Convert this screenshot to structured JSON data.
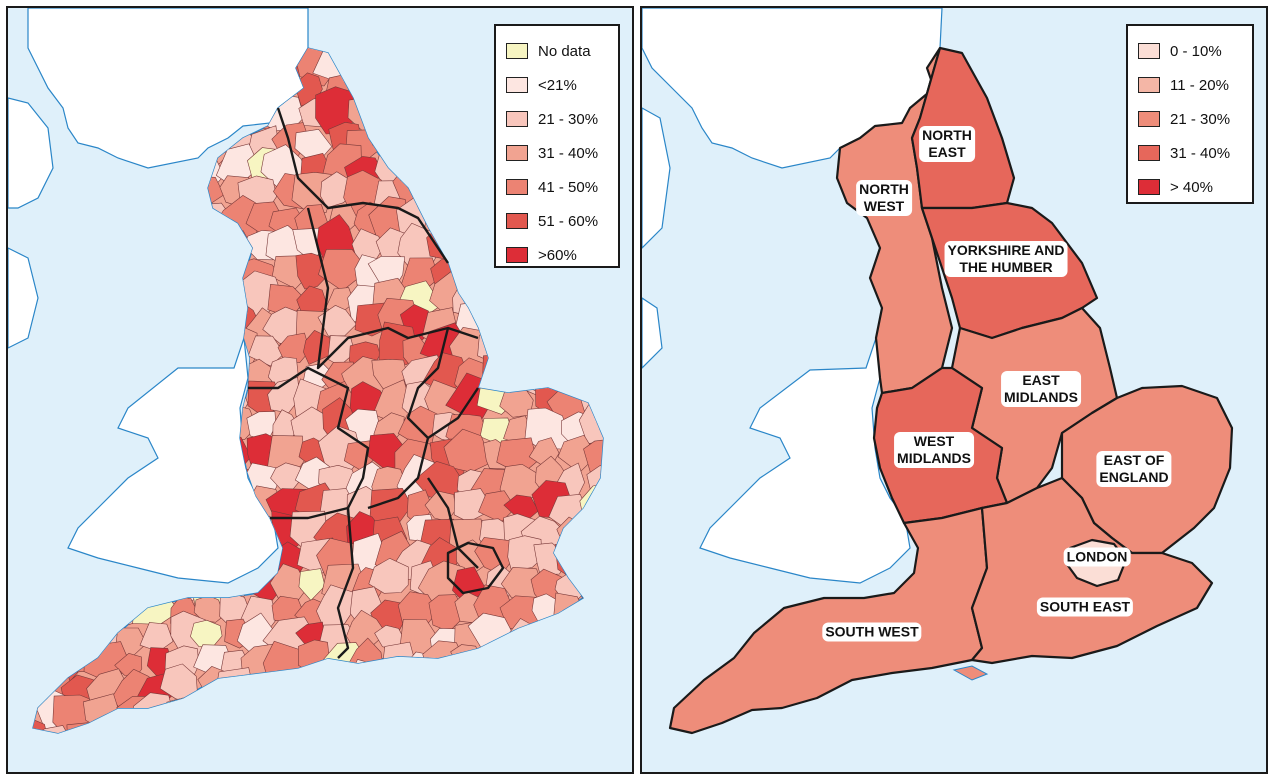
{
  "colors": {
    "sea": "#dff0fa",
    "land_other": "#ffffff",
    "coast": "#2a86c8",
    "border": "#1a1a1a"
  },
  "left_map": {
    "legend": [
      {
        "label": "No data",
        "color": "#f7f5c2"
      },
      {
        "label": "<21%",
        "color": "#fde6e1"
      },
      {
        "label": "21 - 30%",
        "color": "#f8c6bc"
      },
      {
        "label": "31 - 40%",
        "color": "#f1a391"
      },
      {
        "label": "41 - 50%",
        "color": "#ec8373"
      },
      {
        "label": "51 - 60%",
        "color": "#e2584f"
      },
      {
        "label": ">60%",
        "color": "#dd2d37"
      }
    ]
  },
  "right_map": {
    "legend": [
      {
        "label": "0 - 10%",
        "color": "#fbded6"
      },
      {
        "label": "11 - 20%",
        "color": "#f4b6a6"
      },
      {
        "label": "21 - 30%",
        "color": "#ee8d7a"
      },
      {
        "label": "31 - 40%",
        "color": "#e6675b"
      },
      {
        "label": "> 40%",
        "color": "#dd2d37"
      }
    ],
    "regions": [
      {
        "name": "NORTH\nEAST",
        "band": "31 - 40%",
        "color": "#e6675b"
      },
      {
        "name": "NORTH\nWEST",
        "band": "21 - 30%",
        "color": "#ee8d7a"
      },
      {
        "name": "YORKSHIRE AND\nTHE HUMBER",
        "band": "31 - 40%",
        "color": "#e6675b"
      },
      {
        "name": "EAST\nMIDLANDS",
        "band": "21 - 30%",
        "color": "#ee8d7a"
      },
      {
        "name": "WEST\nMIDLANDS",
        "band": "31 - 40%",
        "color": "#e6675b"
      },
      {
        "name": "EAST OF\nENGLAND",
        "band": "21 - 30%",
        "color": "#ee8d7a"
      },
      {
        "name": "LONDON",
        "band": "0 - 10%",
        "color": "#fbded6"
      },
      {
        "name": "SOUTH EAST",
        "band": "21 - 30%",
        "color": "#ee8d7a"
      },
      {
        "name": "SOUTH WEST",
        "band": "21 - 30%",
        "color": "#ee8d7a"
      }
    ]
  }
}
